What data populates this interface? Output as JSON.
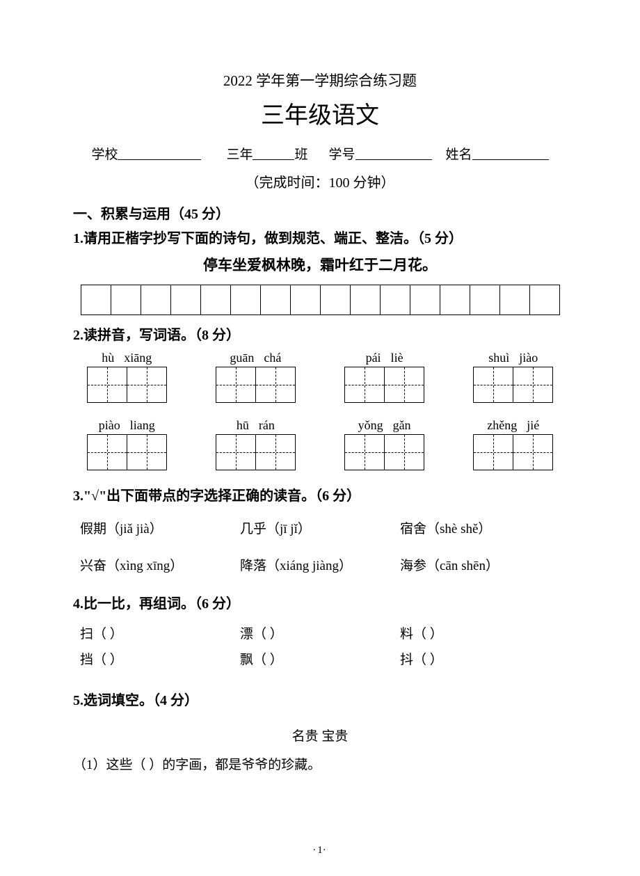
{
  "header": {
    "title1": "2022 学年第一学期综合练习题",
    "title2": "三年级语文",
    "school_label": "学校",
    "grade_label": "三年",
    "class_suffix": "班",
    "id_label": "学号",
    "name_label": "姓名",
    "time_text": "（完成时间：100 分钟）"
  },
  "section1": {
    "title": "一、积累与运用（45 分）"
  },
  "q1": {
    "title": "1.请用正楷字抄写下面的诗句，做到规范、端正、整洁。（5 分）",
    "poem": "停车坐爱枫林晚，霜叶红于二月花。",
    "grid_cells": 16
  },
  "q2": {
    "title": "2.读拼音，写词语。（8 分）",
    "rows": [
      [
        {
          "p1": "hù",
          "p2": "xiāng"
        },
        {
          "p1": "guān",
          "p2": "chá"
        },
        {
          "p1": "pái",
          "p2": "liè"
        },
        {
          "p1": "shuì",
          "p2": "jiào"
        }
      ],
      [
        {
          "p1": "piào",
          "p2": "liang"
        },
        {
          "p1": "hū",
          "p2": "rán"
        },
        {
          "p1": "yǒng",
          "p2": "gǎn"
        },
        {
          "p1": "zhěng",
          "p2": "jié"
        }
      ]
    ]
  },
  "q3": {
    "title": "3.\"√\"出下面带点的字选择正确的读音。（6 分）",
    "rows": [
      [
        {
          "text": "假期（jiǎ jià）"
        },
        {
          "text": "几乎（jī jǐ）"
        },
        {
          "text": "宿舍（shè  shě）"
        }
      ],
      [
        {
          "text": "兴奋（xìng  xīng）"
        },
        {
          "text": "降落（xiáng jiàng）"
        },
        {
          "text": "海参（cān   shēn）"
        }
      ]
    ]
  },
  "q4": {
    "title": "4.比一比，再组词。（6 分）",
    "rows": [
      [
        {
          "text": "扫（        ）"
        },
        {
          "text": "漂（        ）"
        },
        {
          "text": "料（        ）"
        }
      ],
      [
        {
          "text": "挡（        ）"
        },
        {
          "text": "飘（        ）"
        },
        {
          "text": "抖（        ）"
        }
      ]
    ]
  },
  "q5": {
    "title": "5.选词填空。（4 分）",
    "words": "名贵      宝贵",
    "line1": "（1）这些（          ）的字画，都是爷爷的珍藏。"
  },
  "page_number": "1"
}
